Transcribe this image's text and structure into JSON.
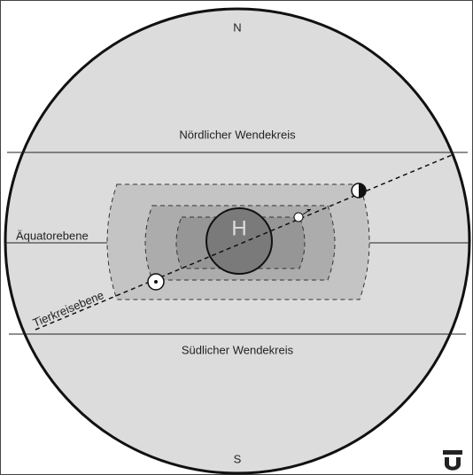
{
  "labels": {
    "north": "N",
    "north_tropic": "Nördlicher Wendekreis",
    "equator": "Äquatorebene",
    "center": "H",
    "ecliptic": "Tierkreisebene",
    "south_tropic": "Südlicher Wendekreis",
    "south": "S"
  }
}
